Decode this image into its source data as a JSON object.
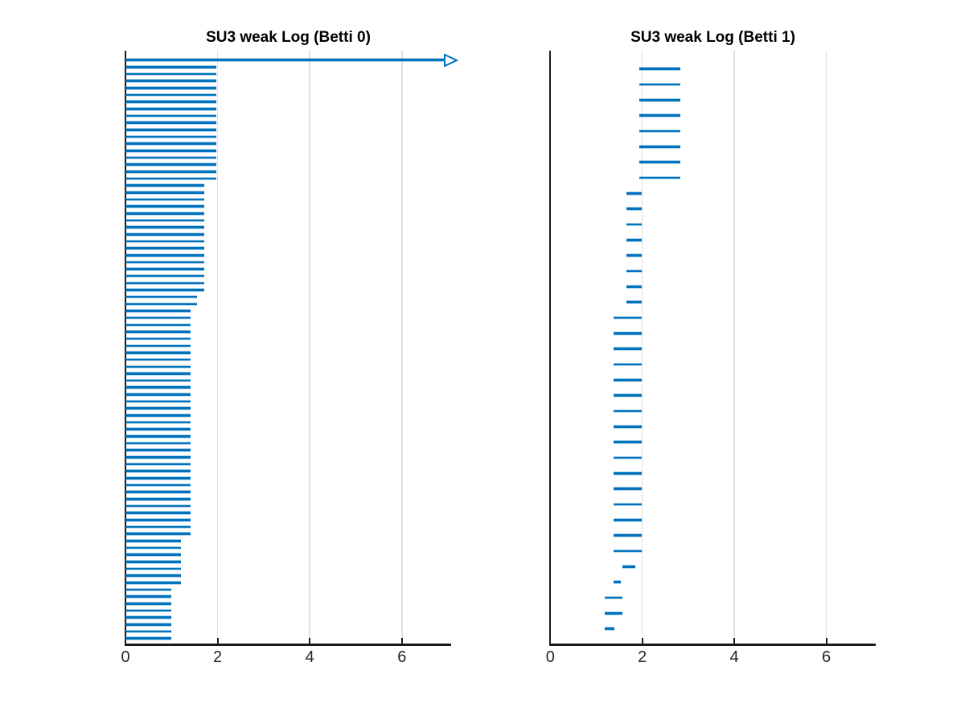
{
  "figure": {
    "background": "#ffffff"
  },
  "style": {
    "bar_color": "#0072BD",
    "axis_color": "#1a1a1a",
    "grid_color": "#e0e0e0",
    "ticklabel_color": "#262626",
    "title_color": "#000000"
  },
  "chart_data": [
    {
      "type": "barcode",
      "description": "persistence homology barcode, horizontal intervals [birth, death], death null = infinite bar drawn as arrow",
      "title": "SU3 weak Log (Betti 0)",
      "xlabel": "",
      "ylabel": "",
      "xlim": [
        0,
        7.07
      ],
      "xticks": [
        0,
        2,
        4,
        6
      ],
      "grid_x": [
        2,
        4,
        6
      ],
      "legend": "none",
      "arrow_tip": 7.19,
      "intervals": [
        [
          0,
          null
        ],
        [
          0,
          1.98
        ],
        [
          0,
          1.98
        ],
        [
          0,
          1.98
        ],
        [
          0,
          1.98
        ],
        [
          0,
          1.98
        ],
        [
          0,
          1.98
        ],
        [
          0,
          1.98
        ],
        [
          0,
          1.98
        ],
        [
          0,
          1.98
        ],
        [
          0,
          1.98
        ],
        [
          0,
          1.98
        ],
        [
          0,
          1.98
        ],
        [
          0,
          1.98
        ],
        [
          0,
          1.98
        ],
        [
          0,
          1.98
        ],
        [
          0,
          1.98
        ],
        [
          0,
          1.98
        ],
        [
          0,
          1.71
        ],
        [
          0,
          1.71
        ],
        [
          0,
          1.71
        ],
        [
          0,
          1.71
        ],
        [
          0,
          1.71
        ],
        [
          0,
          1.71
        ],
        [
          0,
          1.71
        ],
        [
          0,
          1.71
        ],
        [
          0,
          1.71
        ],
        [
          0,
          1.71
        ],
        [
          0,
          1.71
        ],
        [
          0,
          1.71
        ],
        [
          0,
          1.71
        ],
        [
          0,
          1.71
        ],
        [
          0,
          1.71
        ],
        [
          0,
          1.71
        ],
        [
          0,
          1.56
        ],
        [
          0,
          1.56
        ],
        [
          0,
          1.42
        ],
        [
          0,
          1.42
        ],
        [
          0,
          1.42
        ],
        [
          0,
          1.42
        ],
        [
          0,
          1.42
        ],
        [
          0,
          1.42
        ],
        [
          0,
          1.42
        ],
        [
          0,
          1.42
        ],
        [
          0,
          1.42
        ],
        [
          0,
          1.42
        ],
        [
          0,
          1.42
        ],
        [
          0,
          1.42
        ],
        [
          0,
          1.42
        ],
        [
          0,
          1.42
        ],
        [
          0,
          1.42
        ],
        [
          0,
          1.42
        ],
        [
          0,
          1.42
        ],
        [
          0,
          1.42
        ],
        [
          0,
          1.42
        ],
        [
          0,
          1.42
        ],
        [
          0,
          1.42
        ],
        [
          0,
          1.42
        ],
        [
          0,
          1.42
        ],
        [
          0,
          1.42
        ],
        [
          0,
          1.42
        ],
        [
          0,
          1.42
        ],
        [
          0,
          1.42
        ],
        [
          0,
          1.42
        ],
        [
          0,
          1.42
        ],
        [
          0,
          1.42
        ],
        [
          0,
          1.42
        ],
        [
          0,
          1.42
        ],
        [
          0,
          1.42
        ],
        [
          0,
          1.21
        ],
        [
          0,
          1.21
        ],
        [
          0,
          1.21
        ],
        [
          0,
          1.21
        ],
        [
          0,
          1.21
        ],
        [
          0,
          1.21
        ],
        [
          0,
          1.21
        ],
        [
          0,
          1.0
        ],
        [
          0,
          1.0
        ],
        [
          0,
          1.0
        ],
        [
          0,
          1.0
        ],
        [
          0,
          1.0
        ],
        [
          0,
          1.0
        ],
        [
          0,
          1.0
        ],
        [
          0,
          1.0
        ]
      ]
    },
    {
      "type": "barcode",
      "description": "persistence homology barcode, horizontal intervals [birth, death]",
      "title": "SU3 weak Log (Betti 1)",
      "xlabel": "",
      "ylabel": "",
      "xlim": [
        0,
        7.07
      ],
      "xticks": [
        0,
        2,
        4,
        6
      ],
      "grid_x": [
        2,
        4,
        6
      ],
      "legend": "none",
      "intervals": [
        [
          1.94,
          2.83
        ],
        [
          1.94,
          2.83
        ],
        [
          1.94,
          2.83
        ],
        [
          1.94,
          2.83
        ],
        [
          1.94,
          2.83
        ],
        [
          1.94,
          2.83
        ],
        [
          1.94,
          2.83
        ],
        [
          1.94,
          2.83
        ],
        [
          1.66,
          1.98
        ],
        [
          1.66,
          1.98
        ],
        [
          1.66,
          1.98
        ],
        [
          1.66,
          1.98
        ],
        [
          1.66,
          1.98
        ],
        [
          1.66,
          1.98
        ],
        [
          1.66,
          1.98
        ],
        [
          1.66,
          1.98
        ],
        [
          1.38,
          1.98
        ],
        [
          1.38,
          1.98
        ],
        [
          1.38,
          1.98
        ],
        [
          1.38,
          1.98
        ],
        [
          1.38,
          1.98
        ],
        [
          1.38,
          1.98
        ],
        [
          1.38,
          1.98
        ],
        [
          1.38,
          1.98
        ],
        [
          1.38,
          1.98
        ],
        [
          1.38,
          1.98
        ],
        [
          1.38,
          1.98
        ],
        [
          1.38,
          1.98
        ],
        [
          1.38,
          1.98
        ],
        [
          1.38,
          1.98
        ],
        [
          1.38,
          1.98
        ],
        [
          1.38,
          1.98
        ],
        [
          1.56,
          1.84
        ],
        [
          1.37,
          1.53
        ],
        [
          1.18,
          1.56
        ],
        [
          1.18,
          1.56
        ],
        [
          1.18,
          1.4
        ]
      ]
    }
  ]
}
